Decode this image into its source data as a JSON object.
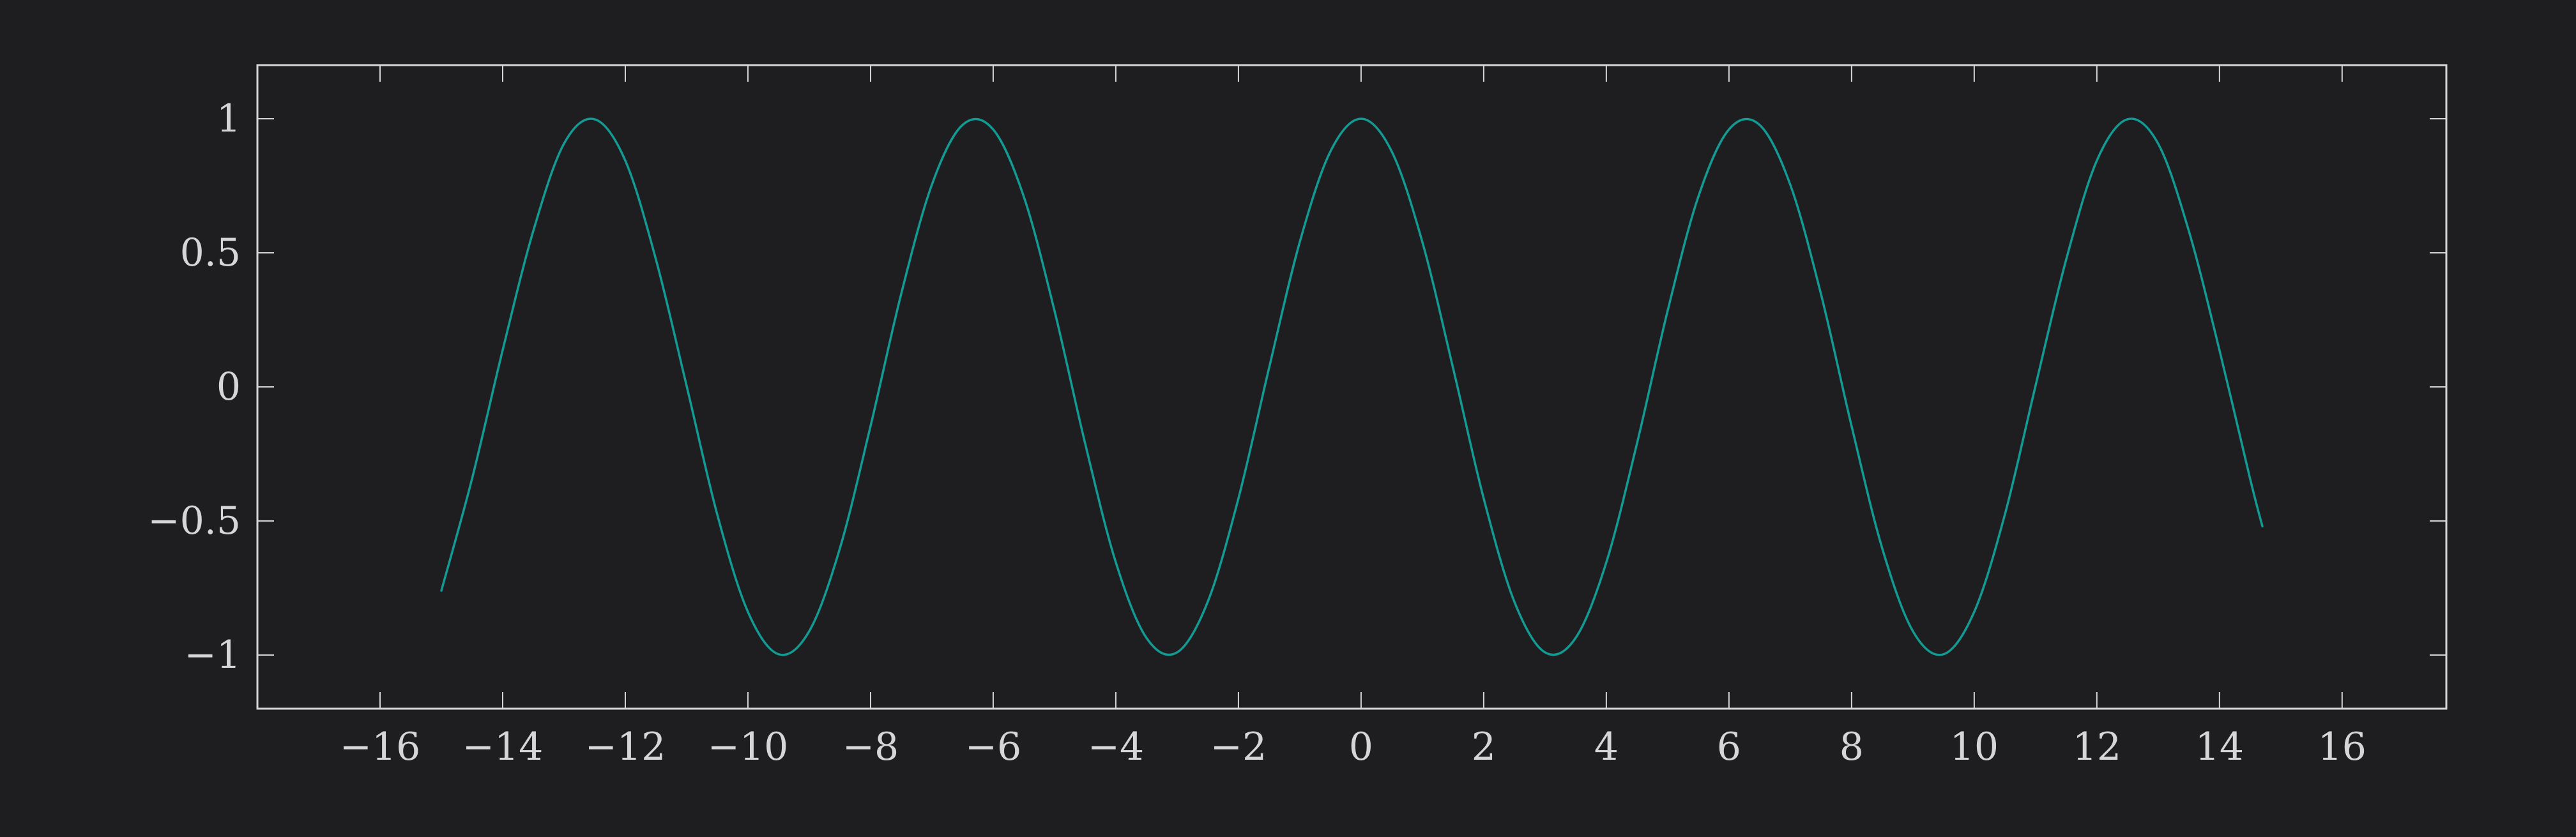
{
  "colors": {
    "background": "#1e1e21",
    "axis": "#d6d6d6",
    "series": "#139a93"
  },
  "chart_data": {
    "type": "line",
    "title": "",
    "xlabel": "",
    "ylabel": "",
    "xlim": [
      -18,
      17.7
    ],
    "ylim": [
      -1.2,
      1.2
    ],
    "grid": false,
    "legend": "none",
    "xticks": [
      -16,
      -14,
      -12,
      -10,
      -8,
      -6,
      -4,
      -2,
      0,
      2,
      4,
      6,
      8,
      10,
      12,
      14,
      16
    ],
    "xtick_labels": [
      "−16",
      "−14",
      "−12",
      "−10",
      "−8",
      "−6",
      "−4",
      "−2",
      "0",
      "2",
      "4",
      "6",
      "8",
      "10",
      "12",
      "14",
      "16"
    ],
    "yticks": [
      -1,
      -0.5,
      0,
      0.5,
      1
    ],
    "ytick_labels": [
      "−1",
      "−0.5",
      "0",
      "0.5",
      "1"
    ],
    "series": [
      {
        "function": "cos(x)",
        "x": [
          -15,
          -14.5,
          -14,
          -13.5,
          -13,
          -12.5,
          -12,
          -11.5,
          -11,
          -10.5,
          -10,
          -9.5,
          -9,
          -8.5,
          -8,
          -7.5,
          -7,
          -6.5,
          -6,
          -5.5,
          -5,
          -4.5,
          -4,
          -3.5,
          -3,
          -2.5,
          -2,
          -1.5,
          -1,
          -0.5,
          0,
          0.5,
          1,
          1.5,
          2,
          2.5,
          3,
          3.5,
          4,
          4.5,
          5,
          5.5,
          6,
          6.5,
          7,
          7.5,
          8,
          8.5,
          9,
          9.5,
          10,
          10.5,
          11,
          11.5,
          12,
          12.5,
          13,
          13.5,
          14,
          14.5,
          14.7
        ],
        "y": [
          -0.76,
          -0.343,
          0.137,
          0.582,
          0.907,
          0.998,
          0.844,
          0.475,
          0.004,
          -0.476,
          -0.839,
          -0.997,
          -0.911,
          -0.602,
          -0.146,
          0.347,
          0.754,
          0.977,
          0.96,
          0.709,
          0.284,
          -0.211,
          -0.654,
          -0.936,
          -0.99,
          -0.801,
          -0.416,
          0.071,
          0.54,
          0.878,
          1.0,
          0.878,
          0.54,
          0.071,
          -0.416,
          -0.801,
          -0.99,
          -0.936,
          -0.654,
          -0.211,
          0.284,
          0.709,
          0.96,
          0.977,
          0.754,
          0.347,
          -0.146,
          -0.602,
          -0.911,
          -0.997,
          -0.839,
          -0.476,
          0.004,
          0.475,
          0.844,
          0.998,
          0.907,
          0.582,
          0.137,
          -0.343,
          -0.52
        ]
      }
    ]
  }
}
